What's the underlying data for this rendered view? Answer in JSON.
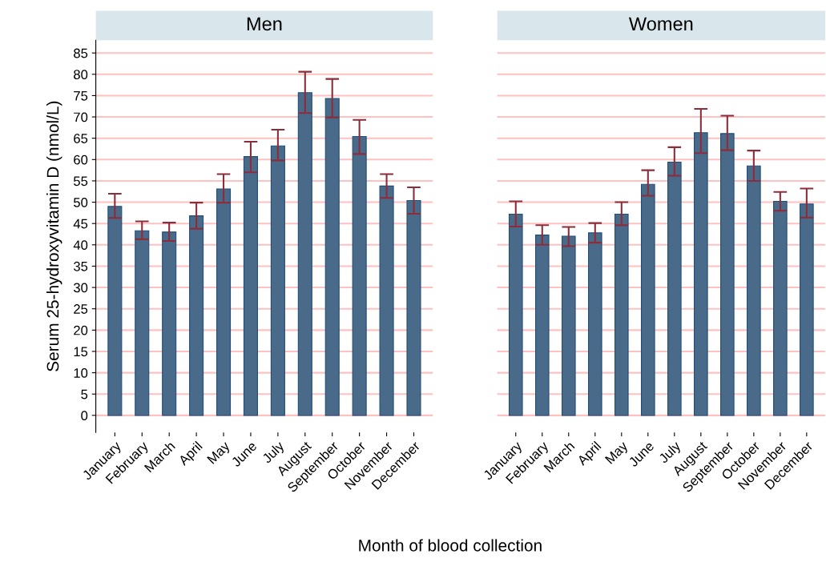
{
  "chart_data": [
    {
      "type": "bar",
      "title": "Men",
      "ylabel": "Serum 25-hydroxyvitamin D (nmol/L)",
      "xlabel": "Month of blood collection",
      "categories": [
        "January",
        "February",
        "March",
        "April",
        "May",
        "June",
        "July",
        "August",
        "September",
        "October",
        "November",
        "December"
      ],
      "series": [
        {
          "color": "#4a6a8a",
          "values": [
            49.0,
            43.3,
            43.0,
            46.8,
            53.1,
            60.7,
            63.2,
            75.7,
            74.3,
            65.4,
            53.8,
            50.4
          ],
          "errors": [
            [
              46.3,
              52.0
            ],
            [
              41.3,
              45.5
            ],
            [
              40.9,
              45.2
            ],
            [
              43.8,
              49.9
            ],
            [
              49.9,
              56.6
            ],
            [
              57.0,
              64.2
            ],
            [
              59.8,
              67.0
            ],
            [
              70.9,
              80.6
            ],
            [
              69.9,
              78.9
            ],
            [
              61.3,
              69.3
            ],
            [
              51.0,
              56.6
            ],
            [
              47.3,
              53.5
            ]
          ]
        }
      ],
      "ylim": [
        -4,
        88
      ],
      "yticks": [
        0,
        5,
        10,
        15,
        20,
        25,
        30,
        35,
        40,
        45,
        50,
        55,
        60,
        65,
        70,
        75,
        80,
        85
      ],
      "grid": "y",
      "legend": false
    },
    {
      "type": "bar",
      "title": "Women",
      "categories": [
        "January",
        "February",
        "March",
        "April",
        "May",
        "June",
        "July",
        "August",
        "September",
        "October",
        "November",
        "December"
      ],
      "series": [
        {
          "color": "#4a6a8a",
          "values": [
            47.2,
            42.3,
            42.0,
            42.8,
            47.2,
            54.2,
            59.4,
            66.3,
            66.1,
            58.5,
            50.2,
            49.6
          ],
          "errors": [
            [
              44.3,
              50.2
            ],
            [
              40.0,
              44.6
            ],
            [
              39.7,
              44.2
            ],
            [
              40.5,
              45.1
            ],
            [
              44.6,
              50.0
            ],
            [
              51.5,
              57.5
            ],
            [
              56.2,
              62.9
            ],
            [
              61.5,
              71.9
            ],
            [
              62.2,
              70.3
            ],
            [
              55.0,
              62.1
            ],
            [
              48.0,
              52.4
            ],
            [
              46.4,
              53.2
            ]
          ]
        }
      ],
      "yticks": [
        0,
        5,
        10,
        15,
        20,
        25,
        30,
        35,
        40,
        45,
        50,
        55,
        60,
        65,
        70,
        75,
        80,
        85
      ],
      "grid": "y",
      "legend": false,
      "tick_labels": "x"
    }
  ]
}
